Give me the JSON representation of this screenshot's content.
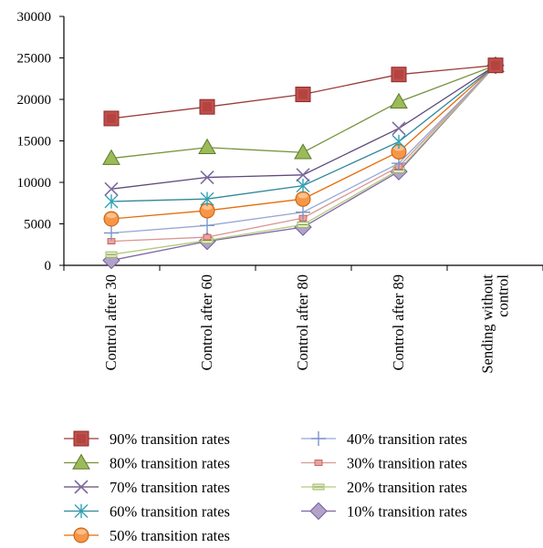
{
  "chart_data": {
    "type": "line",
    "title": "",
    "xlabel": "",
    "ylabel": "",
    "categories": [
      "Control after 30",
      "Control after 60",
      "Control after 80",
      "Control after 89",
      "Sending without control"
    ],
    "ylim": [
      0,
      30000
    ],
    "yticks": [
      0,
      5000,
      10000,
      15000,
      20000,
      25000,
      30000
    ],
    "grid": false,
    "legend_position": "bottom",
    "series": [
      {
        "name": "90% transition rates",
        "marker": "square",
        "color": "#c0504d",
        "line": "#9b3b3b",
        "values": [
          17700,
          19100,
          20600,
          23000,
          24100
        ]
      },
      {
        "name": "80% transition rates",
        "marker": "triangle",
        "color": "#9bbb59",
        "line": "#76923c",
        "values": [
          12900,
          14200,
          13600,
          19700,
          24100
        ]
      },
      {
        "name": "70% transition rates",
        "marker": "x",
        "color": "#7f6a9f",
        "line": "#5f497a",
        "values": [
          9200,
          10600,
          10900,
          16500,
          24100
        ]
      },
      {
        "name": "60% transition rates",
        "marker": "star",
        "color": "#31a3b4",
        "line": "#31859b",
        "values": [
          7700,
          8000,
          9600,
          14900,
          24100
        ]
      },
      {
        "name": "50% transition rates",
        "marker": "circle",
        "color": "#f79646",
        "line": "#e46c0a",
        "values": [
          5600,
          6600,
          8000,
          13700,
          24100
        ]
      },
      {
        "name": "40% transition rates",
        "marker": "plus",
        "color": "#7c96c8",
        "line": "#95a7d6",
        "values": [
          3900,
          4800,
          6400,
          12300,
          24100
        ]
      },
      {
        "name": "30% transition rates",
        "marker": "smallrect",
        "color": "#e8a4a1",
        "line": "#d99694",
        "values": [
          2900,
          3400,
          5700,
          11900,
          24100
        ]
      },
      {
        "name": "20% transition rates",
        "marker": "dash",
        "color": "#c3d69b",
        "line": "#b2c97d",
        "values": [
          1300,
          3000,
          4900,
          11500,
          24100
        ]
      },
      {
        "name": "10% transition rates",
        "marker": "diamond",
        "color": "#b3a2c7",
        "line": "#8064a2",
        "values": [
          600,
          2900,
          4600,
          11300,
          24100
        ]
      }
    ]
  }
}
